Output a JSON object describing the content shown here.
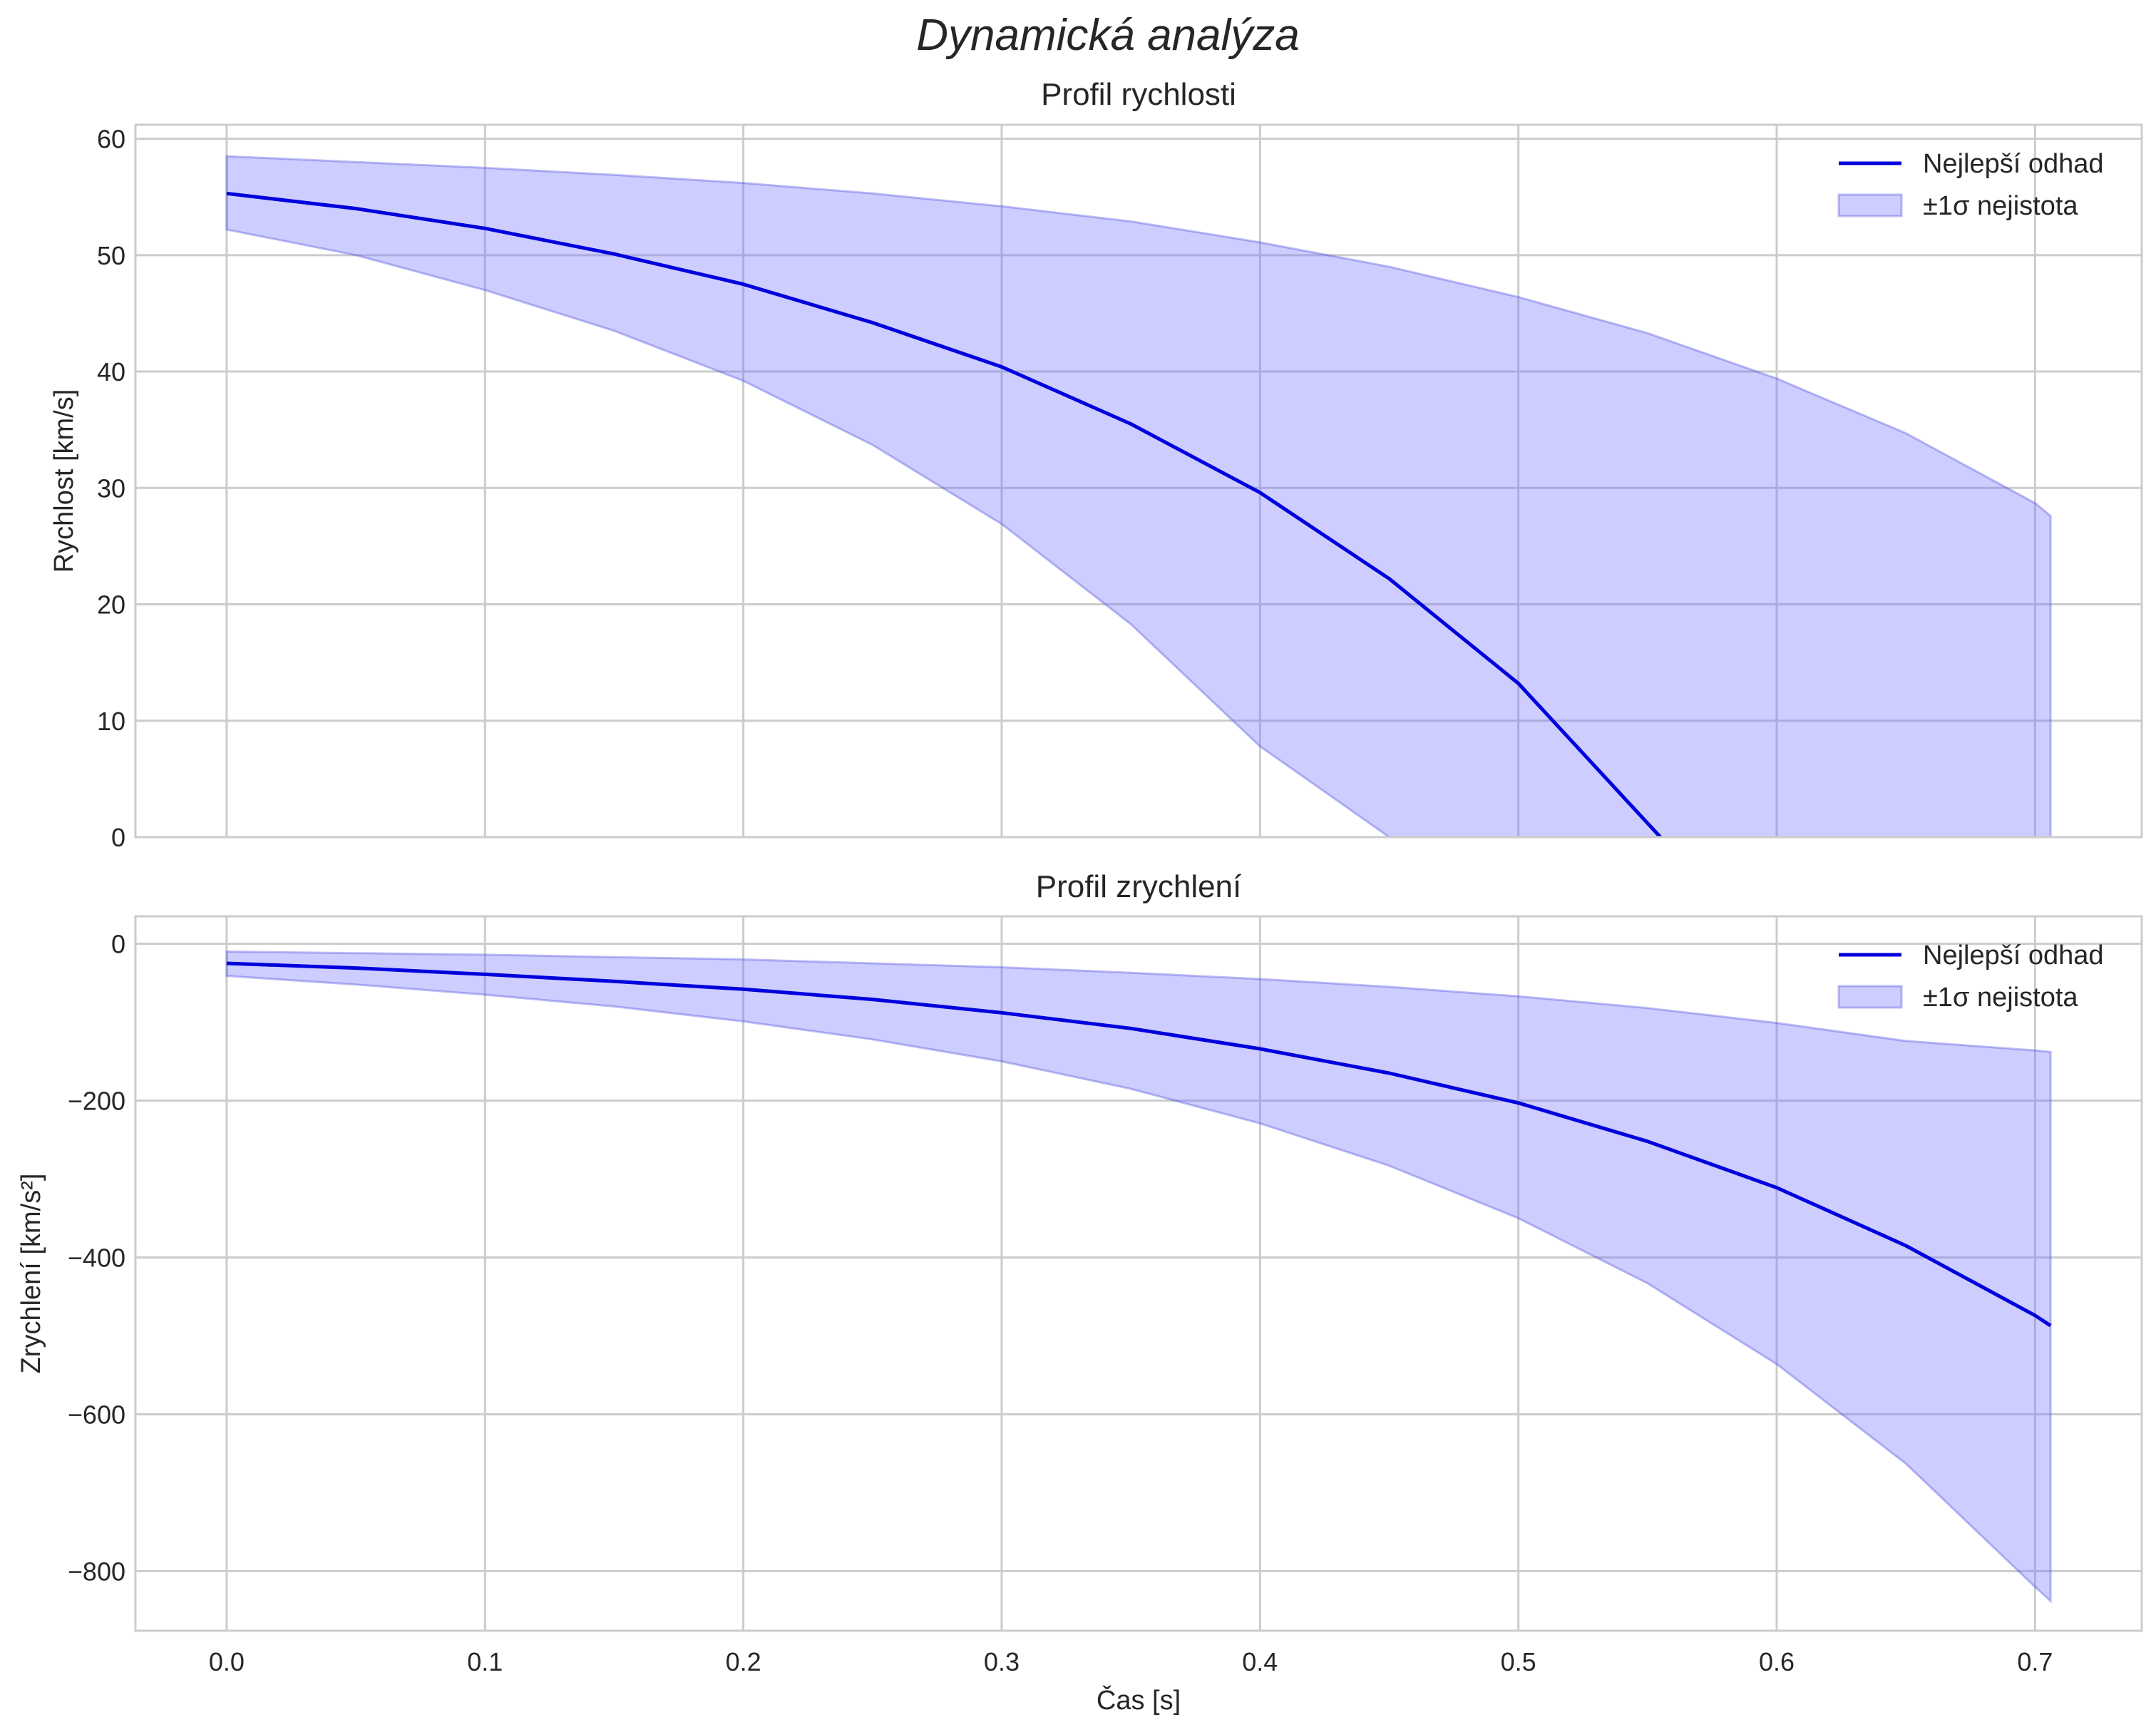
{
  "figure": {
    "suptitle": "Dynamická analýza",
    "xlabel": "Čas [s]",
    "colors": {
      "line": "#0000dd",
      "band_fill": "#6666ff",
      "band_edge": "#4444dd",
      "grid": "#cccccc",
      "text": "#262626"
    }
  },
  "chart_data": [
    {
      "type": "line",
      "title": "Profil rychlosti",
      "xlabel": "",
      "ylabel": "Rychlost [km/s]",
      "xlim": [
        -0.0353,
        0.7413
      ],
      "ylim": [
        0,
        61.2
      ],
      "xticks": [
        0.0,
        0.1,
        0.2,
        0.3,
        0.4,
        0.5,
        0.6,
        0.7
      ],
      "xtick_labels": [
        "0.0",
        "0.1",
        "0.2",
        "0.3",
        "0.4",
        "0.5",
        "0.6",
        "0.7"
      ],
      "show_xtick_labels": false,
      "yticks": [
        0,
        10,
        20,
        30,
        40,
        50,
        60
      ],
      "ytick_labels": [
        "0",
        "10",
        "20",
        "30",
        "40",
        "50",
        "60"
      ],
      "grid": true,
      "legend": {
        "position": "top-right",
        "line_label": "Nejlepší odhad",
        "band_label": "±1σ nejistota"
      },
      "series": [
        {
          "name": "Nejlepší odhad",
          "x": [
            0.0,
            0.05,
            0.1,
            0.15,
            0.2,
            0.25,
            0.3,
            0.35,
            0.4,
            0.45,
            0.5,
            0.555
          ],
          "values": [
            55.3,
            54.0,
            52.3,
            50.1,
            47.5,
            44.2,
            40.4,
            35.5,
            29.6,
            22.2,
            13.2,
            0
          ]
        },
        {
          "name": "±1σ nejistota",
          "type": "band",
          "x": [
            0.0,
            0.05,
            0.1,
            0.15,
            0.2,
            0.25,
            0.3,
            0.35,
            0.4,
            0.45,
            0.5,
            0.55,
            0.6,
            0.65,
            0.7,
            0.706
          ],
          "upper": [
            58.5,
            58.0,
            57.5,
            56.9,
            56.2,
            55.3,
            54.2,
            52.9,
            51.1,
            49.0,
            46.4,
            43.3,
            39.4,
            34.7,
            28.7,
            27.6
          ],
          "lower": [
            52.2,
            50.0,
            47.0,
            43.5,
            39.2,
            33.7,
            26.9,
            18.3,
            7.8,
            0,
            0,
            0,
            0,
            0,
            0,
            0
          ]
        }
      ]
    },
    {
      "type": "line",
      "title": "Profil zrychlení",
      "xlabel": "Čas [s]",
      "ylabel": "Zrychlení [km/s²]",
      "xlim": [
        -0.0353,
        0.7413
      ],
      "ylim": [
        -876,
        35
      ],
      "xticks": [
        0.0,
        0.1,
        0.2,
        0.3,
        0.4,
        0.5,
        0.6,
        0.7
      ],
      "xtick_labels": [
        "0.0",
        "0.1",
        "0.2",
        "0.3",
        "0.4",
        "0.5",
        "0.6",
        "0.7"
      ],
      "show_xtick_labels": true,
      "yticks": [
        0,
        -200,
        -400,
        -600,
        -800
      ],
      "ytick_labels": [
        "0",
        "−200",
        "−400",
        "−600",
        "−800"
      ],
      "grid": true,
      "legend": {
        "position": "top-right",
        "line_label": "Nejlepší odhad",
        "band_label": "±1σ nejistota"
      },
      "series": [
        {
          "name": "Nejlepší odhad",
          "x": [
            0.0,
            0.05,
            0.1,
            0.15,
            0.2,
            0.25,
            0.3,
            0.35,
            0.4,
            0.45,
            0.5,
            0.55,
            0.6,
            0.65,
            0.7,
            0.706
          ],
          "values": [
            -25,
            -31,
            -39,
            -48,
            -58,
            -71,
            -88,
            -108,
            -134,
            -165,
            -203,
            -252,
            -311,
            -385,
            -474,
            -487
          ]
        },
        {
          "name": "±1σ nejistota",
          "type": "band",
          "x": [
            0.0,
            0.05,
            0.1,
            0.15,
            0.2,
            0.25,
            0.3,
            0.35,
            0.4,
            0.45,
            0.5,
            0.55,
            0.6,
            0.65,
            0.7,
            0.706
          ],
          "upper": [
            -10,
            -12,
            -14,
            -17,
            -20,
            -25,
            -30,
            -37,
            -45,
            -55,
            -67,
            -82,
            -101,
            -124,
            -136,
            -138
          ],
          "lower": [
            -41,
            -52,
            -65,
            -80,
            -99,
            -122,
            -150,
            -185,
            -229,
            -283,
            -350,
            -433,
            -536,
            -663,
            -820,
            -838
          ]
        }
      ]
    }
  ]
}
